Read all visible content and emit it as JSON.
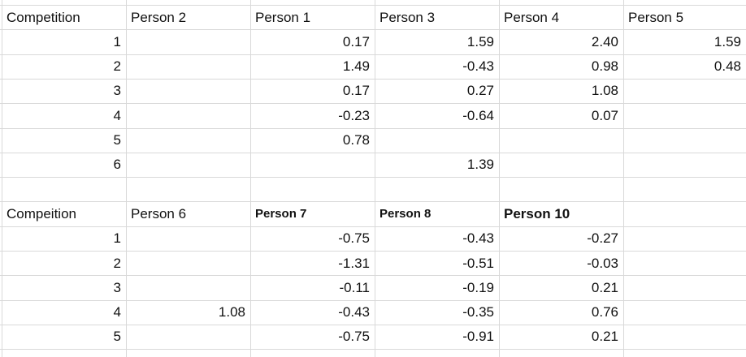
{
  "table_1": {
    "header": [
      "Competition",
      "Person 2",
      "Person 1",
      "Person 3",
      "Person 4",
      "Person 5"
    ],
    "rows": [
      [
        "1",
        null,
        "0.17",
        "1.59",
        "2.40",
        "1.59"
      ],
      [
        "2",
        null,
        "1.49",
        "-0.43",
        "0.98",
        "0.48"
      ],
      [
        "3",
        null,
        "0.17",
        "0.27",
        "1.08",
        null
      ],
      [
        "4",
        null,
        "-0.23",
        "-0.64",
        "0.07",
        null
      ],
      [
        "5",
        null,
        "0.78",
        null,
        null,
        null
      ],
      [
        "6",
        null,
        null,
        "1.39",
        null,
        null
      ]
    ]
  },
  "table_2": {
    "header": [
      "Compeition",
      "Person 6",
      "Person 7",
      "Person 8",
      "Person 10"
    ],
    "rows": [
      [
        "1",
        null,
        "-0.75",
        "-0.43",
        "-0.27"
      ],
      [
        "2",
        null,
        "-1.31",
        "-0.51",
        "-0.03"
      ],
      [
        "3",
        null,
        "-0.11",
        "-0.19",
        "0.21"
      ],
      [
        "4",
        "1.08",
        "-0.43",
        "-0.35",
        "0.76"
      ],
      [
        "5",
        null,
        "-0.75",
        "-0.91",
        "0.21"
      ]
    ]
  }
}
